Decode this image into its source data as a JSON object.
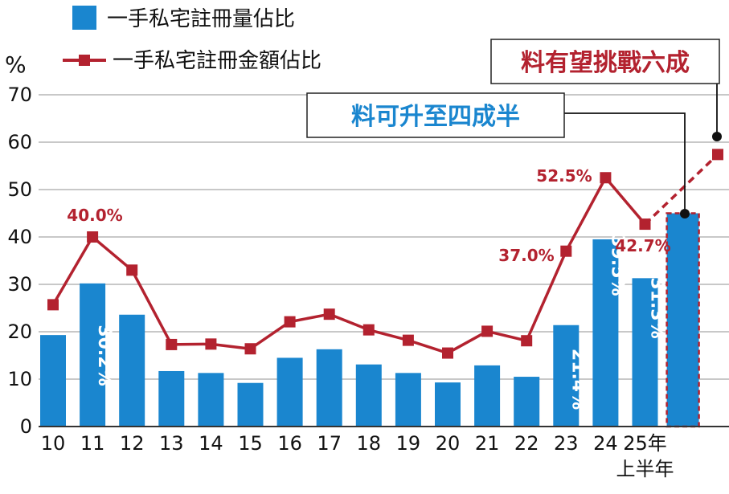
{
  "chart_data": {
    "type": "bar",
    "ylabel": "%",
    "ylim": [
      0,
      70
    ],
    "yticks": [
      0,
      10,
      20,
      30,
      40,
      50,
      60,
      70
    ],
    "grid": true,
    "legend_position": "top-left",
    "categories": [
      "10",
      "11",
      "12",
      "13",
      "14",
      "15",
      "16",
      "17",
      "18",
      "19",
      "20",
      "21",
      "22",
      "23",
      "24",
      "25年\n上半年",
      ""
    ],
    "series": [
      {
        "name": "一手私宅註冊量佔比",
        "type": "bar",
        "color": "#1a86cf",
        "values": [
          19.3,
          30.2,
          23.6,
          11.7,
          11.3,
          9.2,
          14.5,
          16.3,
          13.1,
          11.3,
          9.3,
          12.9,
          10.5,
          21.4,
          39.5,
          31.3,
          45.0
        ],
        "projected_index": 16
      },
      {
        "name": "一手私宅註冊金額佔比",
        "type": "line",
        "color": "#b3222f",
        "values": [
          25.7,
          40.0,
          33.0,
          17.3,
          17.4,
          16.4,
          22.1,
          23.7,
          20.4,
          18.2,
          15.5,
          20.1,
          18.1,
          37.0,
          52.5,
          42.7,
          57.4
        ],
        "projected_index": 16
      }
    ],
    "data_labels": [
      {
        "series": 0,
        "index": 1,
        "text": "30.2%"
      },
      {
        "series": 0,
        "index": 13,
        "text": "21.4%"
      },
      {
        "series": 0,
        "index": 14,
        "text": "39.5%"
      },
      {
        "series": 0,
        "index": 15,
        "text": "31.3%"
      },
      {
        "series": 1,
        "index": 1,
        "text": "40.0%"
      },
      {
        "series": 1,
        "index": 13,
        "text": "37.0%"
      },
      {
        "series": 1,
        "index": 14,
        "text": "52.5%"
      },
      {
        "series": 1,
        "index": 15,
        "text": "42.7%"
      }
    ],
    "annotations": [
      {
        "text": "料有望挑戰六成",
        "series": 1,
        "color": "#b3222f"
      },
      {
        "text": "料可升至四成半",
        "series": 0,
        "color": "#1a86cf"
      }
    ]
  }
}
